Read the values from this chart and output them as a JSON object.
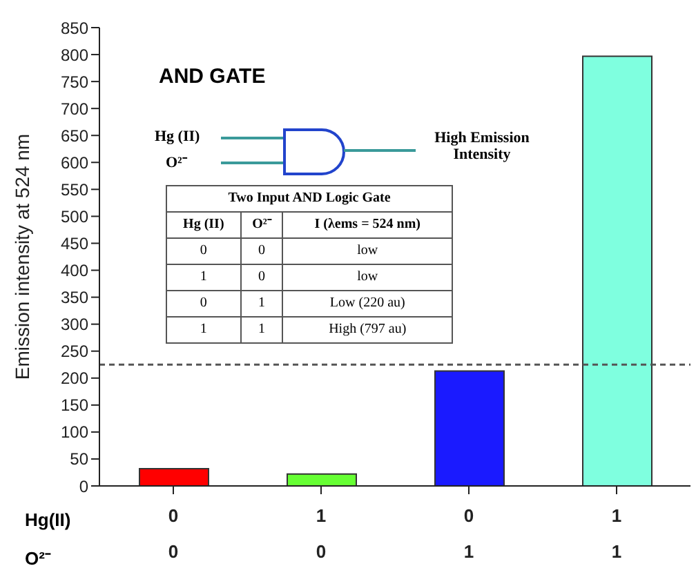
{
  "chart_data": {
    "type": "bar",
    "ylabel": "Emission intensity at 524 nm",
    "categories": [
      "0\n0",
      "1\n0",
      "0\n1",
      "1\n1"
    ],
    "values": [
      32,
      22,
      213,
      797
    ],
    "colors": [
      "#ff0000",
      "#66ff33",
      "#1a1aff",
      "#7fffdf"
    ],
    "ylim": [
      0,
      850
    ],
    "yticks": [
      0,
      50,
      100,
      150,
      200,
      250,
      300,
      350,
      400,
      450,
      500,
      550,
      600,
      650,
      700,
      750,
      800,
      850
    ],
    "ref_lines": [
      {
        "axis": "y",
        "value": 225,
        "color": "#555555",
        "line_style": "dashed"
      }
    ],
    "annotations": [
      "AND GATE",
      "Hg (II)",
      "O²⁻",
      "High Emission Intensity",
      "Two Input AND Logic Gate",
      "Hg (II)",
      "O²⁻",
      "I (λems = 524 nm)",
      "0",
      "0",
      "low",
      "1",
      "0",
      "low",
      "0",
      "1",
      "Low (220 au)",
      "1",
      "1",
      "High (797 au)",
      "Hg(II)",
      "O²⁻"
    ]
  }
}
